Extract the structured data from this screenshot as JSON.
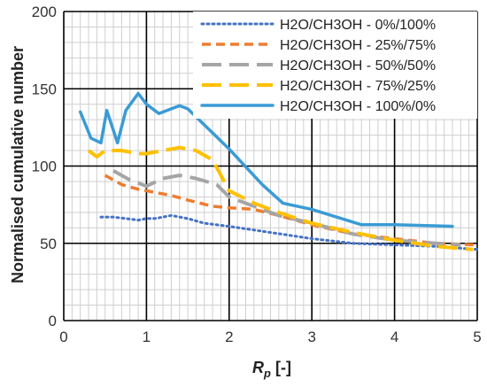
{
  "chart_data": {
    "type": "line",
    "xlabel": {
      "main": "R",
      "sub": "p",
      "rest": " [-]"
    },
    "ylabel": "Normalised cumulative number",
    "xlim": [
      0,
      5
    ],
    "ylim": [
      0,
      200
    ],
    "x_ticks": [
      "0",
      "1",
      "2",
      "3",
      "4",
      "5"
    ],
    "y_ticks": [
      "0",
      "50",
      "100",
      "150",
      "200"
    ],
    "grid": true,
    "legend_position": "top-right",
    "series": [
      {
        "name": "H2O/CH3OH - 0%/100%",
        "color": "#4472c4",
        "style": "dotted",
        "x": [
          0.45,
          0.6,
          0.75,
          0.9,
          1.0,
          1.1,
          1.2,
          1.3,
          1.5,
          1.7,
          2.0,
          2.5,
          3.0,
          3.5,
          4.0,
          4.5,
          5.0
        ],
        "y": [
          67,
          67,
          66,
          65,
          66,
          66,
          67,
          68,
          66,
          63,
          61,
          57,
          53,
          50,
          49,
          48,
          46
        ]
      },
      {
        "name": "H2O/CH3OH - 25%/75%",
        "color": "#ed7d31",
        "style": "dashed",
        "x": [
          0.5,
          0.7,
          0.9,
          1.1,
          1.3,
          1.5,
          1.8,
          2.0,
          2.3,
          2.6,
          3.0,
          3.5,
          4.0,
          4.5,
          5.0
        ],
        "y": [
          94,
          88,
          85,
          83,
          81,
          78,
          74,
          73,
          72,
          68,
          62,
          56,
          53,
          50,
          49
        ]
      },
      {
        "name": "H2O/CH3OH - 50%/50%",
        "color": "#a5a5a5",
        "style": "longdash",
        "x": [
          0.6,
          0.8,
          1.0,
          1.2,
          1.4,
          1.6,
          1.85,
          2.0,
          2.3,
          2.6,
          3.0,
          3.5,
          4.0,
          4.5,
          4.8
        ],
        "y": [
          97,
          91,
          87,
          92,
          94,
          92,
          88,
          80,
          74,
          68,
          63,
          56,
          52,
          50,
          49
        ]
      },
      {
        "name": "H2O/CH3OH - 75%/25%",
        "color": "#ffc000",
        "style": "longdash",
        "x": [
          0.3,
          0.4,
          0.5,
          0.7,
          0.9,
          1.0,
          1.2,
          1.4,
          1.6,
          1.8,
          2.0,
          2.3,
          2.6,
          3.0,
          3.5,
          4.0,
          4.5,
          4.95
        ],
        "y": [
          110,
          106,
          110,
          110,
          108,
          108,
          110,
          112,
          110,
          104,
          84,
          76,
          70,
          63,
          57,
          52,
          48,
          46
        ]
      },
      {
        "name": "H2O/CH3OH - 100%/0%",
        "color": "#3a9bd5",
        "style": "solid",
        "x": [
          0.2,
          0.33,
          0.45,
          0.52,
          0.65,
          0.75,
          0.9,
          1.0,
          1.15,
          1.3,
          1.4,
          1.5,
          2.0,
          2.4,
          2.65,
          3.0,
          3.6,
          4.0,
          4.7
        ],
        "y": [
          135,
          118,
          115,
          136,
          115,
          136,
          147,
          140,
          134,
          137,
          139,
          137,
          111,
          88,
          76,
          72,
          62,
          62,
          61
        ]
      }
    ]
  }
}
